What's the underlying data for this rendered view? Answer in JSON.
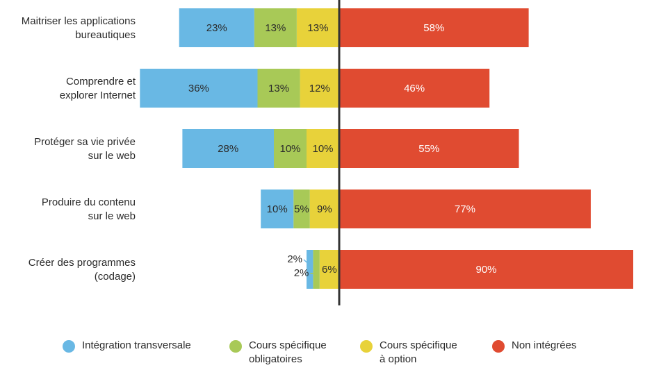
{
  "chart_data": {
    "type": "bar",
    "orientation": "horizontal-diverging",
    "stacked": true,
    "categories": [
      "Maitriser les applications\nbureautiques",
      "Comprendre et\nexplorer Internet",
      "Protéger sa vie privée\nsur le web",
      "Produire du contenu\nsur le web",
      "Créer des programmes\n(codage)"
    ],
    "series": [
      {
        "name": "Intégration transversale",
        "color": "#69b8e4",
        "side": "left",
        "values": [
          23,
          36,
          28,
          10,
          2
        ]
      },
      {
        "name": "Cours spécifique\nobligatoires",
        "color": "#a8c957",
        "side": "left",
        "values": [
          13,
          13,
          10,
          5,
          2
        ]
      },
      {
        "name": "Cours spécifique\nà option",
        "color": "#e8d23a",
        "side": "left",
        "values": [
          13,
          12,
          10,
          9,
          6
        ]
      },
      {
        "name": "Non intégrées",
        "color": "#e04b31",
        "side": "right",
        "values": [
          58,
          46,
          55,
          77,
          90
        ]
      }
    ],
    "data_labels": [
      [
        "23%",
        "13%",
        "13%",
        "58%"
      ],
      [
        "36%",
        "13%",
        "12%",
        "46%"
      ],
      [
        "28%",
        "10%",
        "10%",
        "55%"
      ],
      [
        "10%",
        "5%",
        "9%",
        "77%"
      ],
      [
        "2%",
        "2%",
        "6%",
        "90%"
      ]
    ],
    "title": "",
    "xlabel": "",
    "ylabel": "",
    "legend_position": "bottom",
    "grid": false
  }
}
